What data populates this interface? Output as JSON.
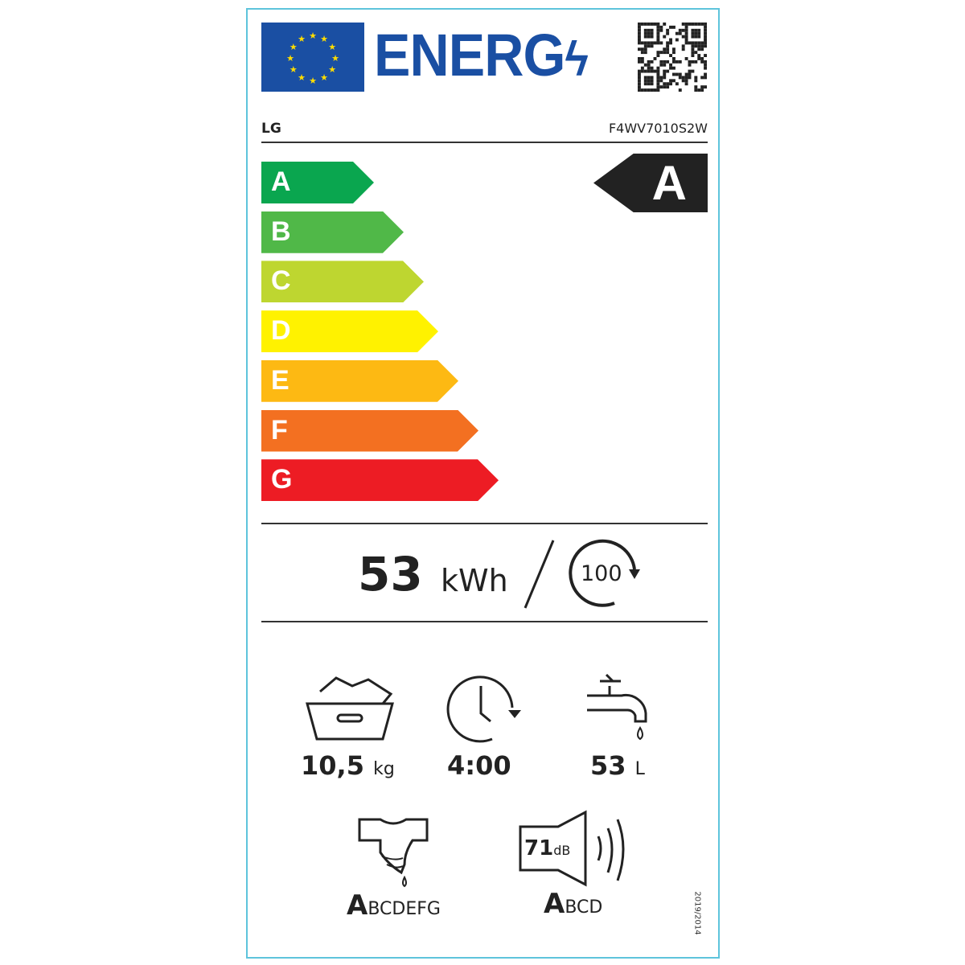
{
  "header": {
    "logo_text": "ENERG",
    "brand": "LG",
    "model": "F4WV7010S2W",
    "qr_icon": "qr-code-icon"
  },
  "scale": {
    "classes": [
      {
        "letter": "A",
        "color": "#0aa64f"
      },
      {
        "letter": "B",
        "color": "#50b848"
      },
      {
        "letter": "C",
        "color": "#bed630"
      },
      {
        "letter": "D",
        "color": "#fff200"
      },
      {
        "letter": "E",
        "color": "#fdb913"
      },
      {
        "letter": "F",
        "color": "#f37021"
      },
      {
        "letter": "G",
        "color": "#ed1c24"
      }
    ],
    "rated_class": "A"
  },
  "energy": {
    "value": "53",
    "unit": "kWh",
    "cycles": "100"
  },
  "specs": {
    "capacity": "10,5",
    "capacity_unit": "kg",
    "duration": "4:00",
    "water": "53",
    "water_unit": "L",
    "noise": "71",
    "noise_unit": "dB"
  },
  "spin_class": {
    "active": "A",
    "rest": "BCDEFG"
  },
  "noise_class": {
    "active": "A",
    "rest": "BCD"
  },
  "regulation": "2019/2014",
  "border_color": "#5ec4dc",
  "brand_blue": "#1a4fa3"
}
